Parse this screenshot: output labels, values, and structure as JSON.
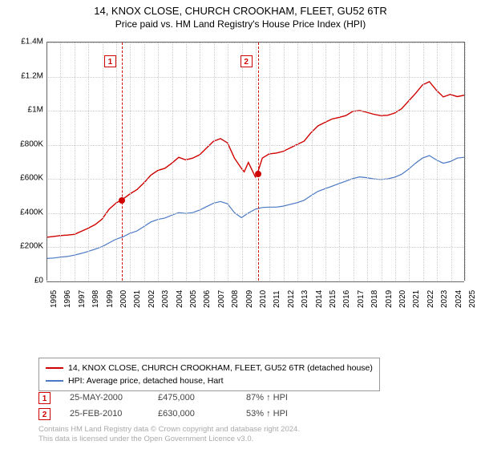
{
  "title": "14, KNOX CLOSE, CHURCH CROOKHAM, FLEET, GU52 6TR",
  "subtitle": "Price paid vs. HM Land Registry's House Price Index (HPI)",
  "chart": {
    "type": "line",
    "background_color": "#ffffff",
    "grid_color": "#cccccc",
    "axis_color": "#666666",
    "title_fontsize": 13,
    "label_fontsize": 10,
    "x": {
      "min": 1995,
      "max": 2025,
      "step": 1,
      "labels": [
        "1995",
        "1996",
        "1997",
        "1998",
        "1999",
        "2000",
        "2001",
        "2002",
        "2003",
        "2004",
        "2005",
        "2006",
        "2007",
        "2008",
        "2009",
        "2010",
        "2011",
        "2012",
        "2013",
        "2014",
        "2015",
        "2016",
        "2017",
        "2018",
        "2019",
        "2020",
        "2021",
        "2022",
        "2023",
        "2024",
        "2025"
      ]
    },
    "y": {
      "min": 0,
      "max": 1400000,
      "step": 200000,
      "labels": [
        "£0",
        "£200K",
        "£400K",
        "£600K",
        "£800K",
        "£1M",
        "£1.2M",
        "£1.4M"
      ]
    },
    "series": [
      {
        "name": "14, KNOX CLOSE, CHURCH CROOKHAM, FLEET, GU52 6TR (detached house)",
        "color": "#d00000",
        "line_width": 1.4,
        "data": [
          [
            1995,
            255000
          ],
          [
            1995.5,
            260000
          ],
          [
            1996,
            265000
          ],
          [
            1996.5,
            268000
          ],
          [
            1997,
            272000
          ],
          [
            1997.5,
            290000
          ],
          [
            1998,
            308000
          ],
          [
            1998.5,
            330000
          ],
          [
            1999,
            362000
          ],
          [
            1999.5,
            420000
          ],
          [
            2000,
            456000
          ],
          [
            2000.4,
            475000
          ],
          [
            2000.5,
            480000
          ],
          [
            2001,
            510000
          ],
          [
            2001.5,
            535000
          ],
          [
            2002,
            575000
          ],
          [
            2002.5,
            620000
          ],
          [
            2003,
            648000
          ],
          [
            2003.5,
            660000
          ],
          [
            2004,
            690000
          ],
          [
            2004.5,
            725000
          ],
          [
            2005,
            710000
          ],
          [
            2005.5,
            720000
          ],
          [
            2006,
            740000
          ],
          [
            2006.5,
            780000
          ],
          [
            2007,
            820000
          ],
          [
            2007.5,
            835000
          ],
          [
            2008,
            810000
          ],
          [
            2008.5,
            720000
          ],
          [
            2009,
            660000
          ],
          [
            2009.2,
            640000
          ],
          [
            2009.5,
            695000
          ],
          [
            2010,
            610000
          ],
          [
            2010.15,
            630000
          ],
          [
            2010.5,
            720000
          ],
          [
            2011,
            745000
          ],
          [
            2011.5,
            750000
          ],
          [
            2012,
            760000
          ],
          [
            2012.5,
            780000
          ],
          [
            2013,
            800000
          ],
          [
            2013.5,
            820000
          ],
          [
            2014,
            870000
          ],
          [
            2014.5,
            910000
          ],
          [
            2015,
            930000
          ],
          [
            2015.5,
            950000
          ],
          [
            2016,
            960000
          ],
          [
            2016.5,
            970000
          ],
          [
            2017,
            995000
          ],
          [
            2017.5,
            1000000
          ],
          [
            2018,
            990000
          ],
          [
            2018.5,
            978000
          ],
          [
            2019,
            970000
          ],
          [
            2019.5,
            972000
          ],
          [
            2020,
            985000
          ],
          [
            2020.5,
            1010000
          ],
          [
            2021,
            1055000
          ],
          [
            2021.5,
            1100000
          ],
          [
            2022,
            1150000
          ],
          [
            2022.5,
            1170000
          ],
          [
            2023,
            1120000
          ],
          [
            2023.5,
            1080000
          ],
          [
            2024,
            1095000
          ],
          [
            2024.5,
            1082000
          ],
          [
            2025,
            1090000
          ]
        ]
      },
      {
        "name": "HPI: Average price, detached house, Hart",
        "color": "#4a78c4",
        "line_width": 1.2,
        "data": [
          [
            1995,
            130000
          ],
          [
            1995.5,
            133000
          ],
          [
            1996,
            138000
          ],
          [
            1996.5,
            142000
          ],
          [
            1997,
            150000
          ],
          [
            1997.5,
            160000
          ],
          [
            1998,
            172000
          ],
          [
            1998.5,
            185000
          ],
          [
            1999,
            200000
          ],
          [
            1999.5,
            222000
          ],
          [
            2000,
            244000
          ],
          [
            2000.5,
            258000
          ],
          [
            2001,
            278000
          ],
          [
            2001.5,
            292000
          ],
          [
            2002,
            318000
          ],
          [
            2002.5,
            345000
          ],
          [
            2003,
            360000
          ],
          [
            2003.5,
            368000
          ],
          [
            2004,
            385000
          ],
          [
            2004.5,
            400000
          ],
          [
            2005,
            395000
          ],
          [
            2005.5,
            400000
          ],
          [
            2006,
            415000
          ],
          [
            2006.5,
            435000
          ],
          [
            2007,
            455000
          ],
          [
            2007.5,
            465000
          ],
          [
            2008,
            452000
          ],
          [
            2008.5,
            400000
          ],
          [
            2009,
            370000
          ],
          [
            2009.5,
            398000
          ],
          [
            2010,
            420000
          ],
          [
            2010.5,
            430000
          ],
          [
            2011,
            432000
          ],
          [
            2011.5,
            432000
          ],
          [
            2012,
            438000
          ],
          [
            2012.5,
            448000
          ],
          [
            2013,
            458000
          ],
          [
            2013.5,
            472000
          ],
          [
            2014,
            500000
          ],
          [
            2014.5,
            525000
          ],
          [
            2015,
            540000
          ],
          [
            2015.5,
            555000
          ],
          [
            2016,
            570000
          ],
          [
            2016.5,
            585000
          ],
          [
            2017,
            600000
          ],
          [
            2017.5,
            610000
          ],
          [
            2018,
            605000
          ],
          [
            2018.5,
            598000
          ],
          [
            2019,
            595000
          ],
          [
            2019.5,
            598000
          ],
          [
            2020,
            608000
          ],
          [
            2020.5,
            625000
          ],
          [
            2021,
            655000
          ],
          [
            2021.5,
            690000
          ],
          [
            2022,
            720000
          ],
          [
            2022.5,
            735000
          ],
          [
            2023,
            710000
          ],
          [
            2023.5,
            690000
          ],
          [
            2024,
            700000
          ],
          [
            2024.5,
            720000
          ],
          [
            2025,
            725000
          ]
        ]
      }
    ],
    "markers": [
      {
        "id": "1",
        "x": 2000.4,
        "y": 475000,
        "date": "25-MAY-2000",
        "price": "£475,000",
        "pct": "87% ↑ HPI"
      },
      {
        "id": "2",
        "x": 2010.15,
        "y": 630000,
        "date": "25-FEB-2010",
        "price": "£630,000",
        "pct": "53% ↑ HPI"
      }
    ]
  },
  "footer": {
    "line1": "Contains HM Land Registry data © Crown copyright and database right 2024.",
    "line2": "This data is licensed under the Open Government Licence v3.0."
  }
}
